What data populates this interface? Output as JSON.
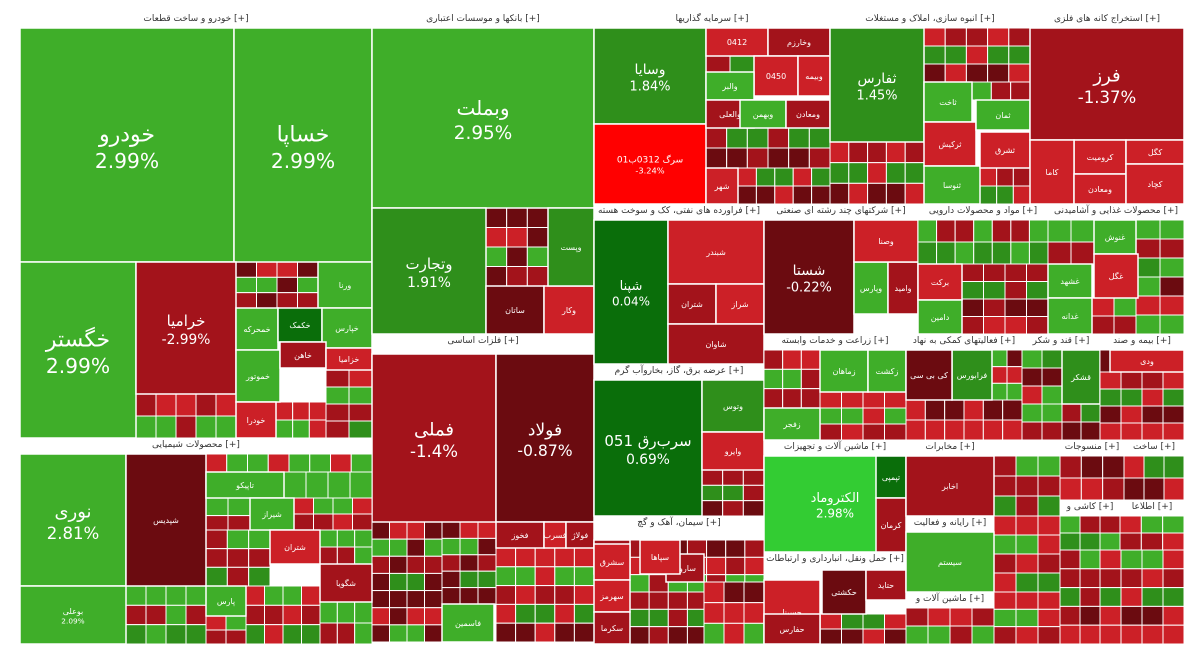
{
  "colors": {
    "deep_green": "#0a6e0a",
    "mid_green": "#2f8f1b",
    "green": "#3fae29",
    "bright_green": "#33cc33",
    "deep_red": "#6b0b10",
    "mid_red": "#a3131b",
    "red": "#cc2027",
    "bright_red": "#ff0000",
    "background": "#ffffff",
    "header_text": "#333333",
    "tile_text": "#ffffff"
  },
  "chart_data": {
    "type": "treemap",
    "title": "",
    "sectors": [
      {
        "name": "خودرو و ساخت قطعات [+]",
        "symbols": [
          {
            "name": "خودرو",
            "change": "2.99%"
          },
          {
            "name": "خساپا",
            "change": "2.99%"
          },
          {
            "name": "خگستر",
            "change": "2.99%"
          },
          {
            "name": "خرامیا",
            "change": "-2.99%"
          },
          {
            "name": "ورنا"
          },
          {
            "name": "خمحرکه"
          },
          {
            "name": "خکمک"
          },
          {
            "name": "خپارس"
          },
          {
            "name": "خموتور"
          },
          {
            "name": "خاهن"
          },
          {
            "name": "خزامیا"
          },
          {
            "name": "خودرا"
          }
        ]
      },
      {
        "name": "بانکها و موسسات اعتباری [+]",
        "symbols": [
          {
            "name": "وبملت",
            "change": "2.95%"
          },
          {
            "name": "وتجارت",
            "change": "1.91%"
          },
          {
            "name": "ساتان"
          },
          {
            "name": "وکار"
          },
          {
            "name": "وپست"
          }
        ]
      },
      {
        "name": "سرمایه گذاریها [+]",
        "symbols": [
          {
            "name": "وسایا",
            "change": "1.84%"
          },
          {
            "name": "سرگ 0312ب01",
            "change": "-3.24%"
          },
          {
            "name": "0412"
          },
          {
            "name": "وخارزم"
          },
          {
            "name": "0450"
          },
          {
            "name": "وبیمه"
          },
          {
            "name": "والبر"
          },
          {
            "name": "والعلی"
          },
          {
            "name": "وبهمن"
          },
          {
            "name": "ومعادن"
          },
          {
            "name": "شهر"
          }
        ]
      },
      {
        "name": "انبوه سازی، املاک و مستغلات [+]",
        "symbols": [
          {
            "name": "ثفارس",
            "change": "1.45%"
          },
          {
            "name": "ثاخت"
          },
          {
            "name": "ثرکیش"
          },
          {
            "name": "ثمان"
          },
          {
            "name": "ثنوسا"
          },
          {
            "name": "ثشرق"
          }
        ]
      },
      {
        "name": "استخراج کانه های فلزی [+]",
        "symbols": [
          {
            "name": "فرز",
            "change": "-1.37%"
          },
          {
            "name": "کروميت"
          },
          {
            "name": "کگل"
          },
          {
            "name": "کاما"
          },
          {
            "name": "ومعادن"
          },
          {
            "name": "کچاد"
          }
        ]
      },
      {
        "name": "فلزات اساسی [+]",
        "symbols": [
          {
            "name": "فملی",
            "change": "-1.4%"
          },
          {
            "name": "فولاد",
            "change": "-0.87%"
          },
          {
            "name": "فخوز"
          },
          {
            "name": "فسرب"
          },
          {
            "name": "فولاژ"
          },
          {
            "name": "فاسمین"
          }
        ]
      },
      {
        "name": "فراورده های نفتی، کک و سوخت هسته [+]",
        "symbols": [
          {
            "name": "شپنا",
            "change": "0.04%"
          },
          {
            "name": "شبندر"
          },
          {
            "name": "شتران"
          },
          {
            "name": "شراز"
          },
          {
            "name": "شاوان"
          }
        ]
      },
      {
        "name": "شرکتهای چند رشته ای صنعتی [+]",
        "symbols": [
          {
            "name": "شستا",
            "change": "-0.22%"
          },
          {
            "name": "وپارس"
          },
          {
            "name": "وامید"
          },
          {
            "name": "وصنا"
          }
        ]
      },
      {
        "name": "عرضه برق، گاز، بخاروآب گرم [+]",
        "symbols": [
          {
            "name": "سرب‌رق 051",
            "change": "0.69%"
          },
          {
            "name": "وتوس"
          },
          {
            "name": "وایرو"
          }
        ]
      },
      {
        "name": "محصولات شیمیایی [+]",
        "symbols": [
          {
            "name": "نوری",
            "change": "2.81%"
          },
          {
            "name": "بوعلی",
            "change": "2.09%"
          },
          {
            "name": "شپدیس"
          },
          {
            "name": "تاپیکو"
          },
          {
            "name": "شیراز"
          },
          {
            "name": "شگویا"
          },
          {
            "name": "شتران"
          },
          {
            "name": "پارس"
          }
        ]
      },
      {
        "name": "ماشین آلات و تجهیزات [+]",
        "symbols": [
          {
            "name": "الکتروماد",
            "change": "2.98%"
          },
          {
            "name": "تپمپی"
          },
          {
            "name": "کرمان"
          }
        ]
      },
      {
        "name": "سیمان، آهک و گچ [+]",
        "symbols": [
          {
            "name": "سفار"
          },
          {
            "name": "سشرق"
          },
          {
            "name": "سهرمز"
          },
          {
            "name": "ساروم"
          },
          {
            "name": "سکرما"
          },
          {
            "name": "سپاها"
          }
        ]
      },
      {
        "name": "حمل ونقل، انبارداری و ارتباطات [+]",
        "symbols": [
          {
            "name": "حسینا"
          },
          {
            "name": "حکشتی"
          },
          {
            "name": "حفارس"
          },
          {
            "name": "حتاید"
          }
        ]
      },
      {
        "name": "مواد و محصولات دارویی [+]",
        "symbols": [
          {
            "name": "برکت"
          },
          {
            "name": "دامین"
          }
        ]
      },
      {
        "name": "محصولات غذایی و آشامیدنی [+]",
        "symbols": [
          {
            "name": "غنوش"
          },
          {
            "name": "غشهد"
          },
          {
            "name": "غگل"
          },
          {
            "name": "غدانه"
          }
        ]
      },
      {
        "name": "زراعت و خدمات وابسته [+]",
        "symbols": [
          {
            "name": "زماهان"
          },
          {
            "name": "زفجر"
          },
          {
            "name": "زکشت"
          }
        ]
      },
      {
        "name": "فعالیتهای کمکی به نهاد [+]",
        "symbols": [
          {
            "name": "فرابورس"
          },
          {
            "name": "کی بی سی"
          }
        ]
      },
      {
        "name": "قند و شکر [+]",
        "symbols": [
          {
            "name": "قشکر"
          }
        ]
      },
      {
        "name": "بیمه و صند [+]",
        "symbols": [
          {
            "name": "ودی"
          }
        ]
      },
      {
        "name": "مخابرات [+]",
        "symbols": [
          {
            "name": "اخابر"
          }
        ]
      },
      {
        "name": "رایانه و فعالیت [+]",
        "symbols": [
          {
            "name": "سیستم"
          }
        ]
      },
      {
        "name": "منسوجات [+]",
        "symbols": []
      },
      {
        "name": "ساخت [+]",
        "symbols": []
      },
      {
        "name": "کاشی و [+]",
        "symbols": []
      },
      {
        "name": "اطلاعا [+]",
        "symbols": []
      },
      {
        "name": "ماشین آلات و [+]",
        "symbols": []
      }
    ]
  }
}
